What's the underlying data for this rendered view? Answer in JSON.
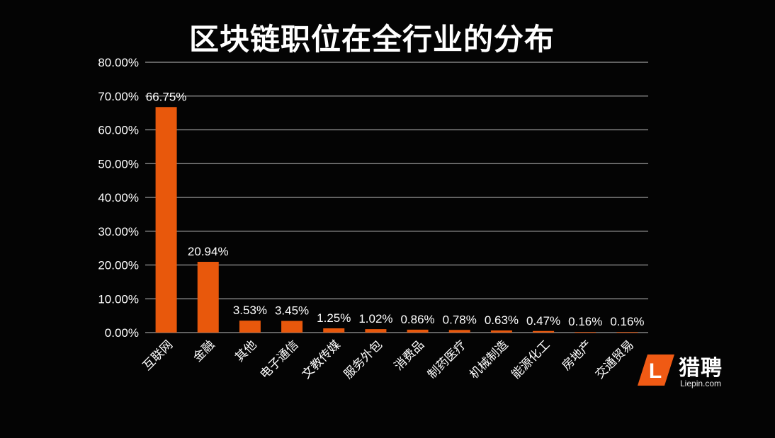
{
  "chart_data": {
    "type": "bar",
    "title": "区块链职位在全行业的分布",
    "categories": [
      "互联网",
      "金融",
      "其他",
      "电子通信",
      "文教传媒",
      "服务外包",
      "消费品",
      "制药医疗",
      "机械制造",
      "能源化工",
      "房地产",
      "交通贸易"
    ],
    "values": [
      66.75,
      20.94,
      3.53,
      3.45,
      1.25,
      1.02,
      0.86,
      0.78,
      0.63,
      0.47,
      0.16,
      0.16
    ],
    "data_labels": [
      "66.75%",
      "20.94%",
      "3.53%",
      "3.45%",
      "1.25%",
      "1.02%",
      "0.86%",
      "0.78%",
      "0.63%",
      "0.47%",
      "0.16%",
      "0.16%"
    ],
    "y_ticks": [
      "0.00%",
      "10.00%",
      "20.00%",
      "30.00%",
      "40.00%",
      "50.00%",
      "60.00%",
      "70.00%",
      "80.00%"
    ],
    "ylim": [
      0,
      80
    ],
    "xlabel": "",
    "ylabel": "",
    "grid": true,
    "bar_color": "#e8580c",
    "grid_color": "#9a9a9a",
    "label_color": "#ffffff"
  },
  "logo": {
    "name": "猎聘",
    "url": "Liepin.com",
    "mark_letter": "L",
    "color": "#f05a14"
  }
}
